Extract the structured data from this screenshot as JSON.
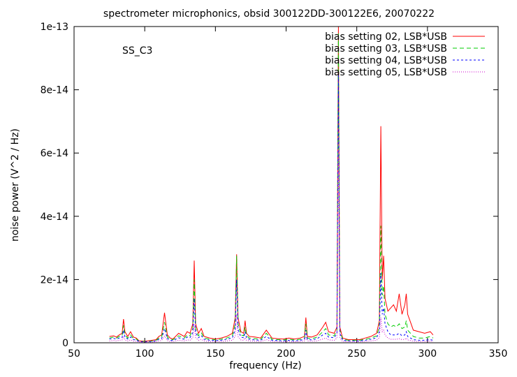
{
  "chart_data": {
    "type": "line",
    "title": "spectrometer microphonics, obsid 300122DD-300122E6, 20070222",
    "annotation": "SS_C3",
    "xlabel": "frequency (Hz)",
    "ylabel": "noise power (V^2 / Hz)",
    "xlim": [
      50,
      350
    ],
    "ylim": [
      0,
      1e-13
    ],
    "xticks": [
      {
        "value": 50,
        "label": "50"
      },
      {
        "value": 100,
        "label": "100"
      },
      {
        "value": 150,
        "label": "150"
      },
      {
        "value": 200,
        "label": "200"
      },
      {
        "value": 250,
        "label": "250"
      },
      {
        "value": 300,
        "label": "300"
      },
      {
        "value": 350,
        "label": "350"
      }
    ],
    "yticks": [
      {
        "value": 0,
        "label": "0"
      },
      {
        "value": 2e-14,
        "label": "2e-14"
      },
      {
        "value": 4e-14,
        "label": "4e-14"
      },
      {
        "value": 6e-14,
        "label": "6e-14"
      },
      {
        "value": 8e-14,
        "label": "8e-14"
      },
      {
        "value": 1e-13,
        "label": "1e-13"
      }
    ],
    "legend_position": "top-right",
    "x": [
      75,
      78,
      80,
      82,
      84,
      85,
      86,
      88,
      90,
      92,
      94,
      96,
      100,
      104,
      108,
      110,
      112,
      114,
      116,
      118,
      120,
      124,
      128,
      130,
      132,
      134,
      135,
      136,
      138,
      140,
      142,
      146,
      150,
      154,
      158,
      162,
      164,
      165,
      166,
      168,
      170,
      171,
      172,
      174,
      178,
      182,
      186,
      190,
      194,
      198,
      202,
      206,
      210,
      213,
      214,
      215,
      218,
      222,
      226,
      228,
      230,
      234,
      236,
      237,
      238,
      240,
      244,
      248,
      252,
      256,
      260,
      264,
      266,
      267,
      268,
      269,
      270,
      272,
      274,
      276,
      278,
      280,
      282,
      284,
      285,
      286,
      288,
      290,
      294,
      298,
      302,
      304
    ],
    "series": [
      {
        "name": "bias setting 02, LSB*USB",
        "color": "#ff0000",
        "dash": "",
        "values": [
          2e-15,
          2.2e-15,
          1.8e-15,
          2.5e-15,
          3e-15,
          7.5e-15,
          3.5e-15,
          2e-15,
          3.5e-15,
          1.8e-15,
          1.5e-15,
          6e-16,
          5e-16,
          7e-16,
          1e-15,
          2e-15,
          2.5e-15,
          9.5e-15,
          2.5e-15,
          1.5e-15,
          1.2e-15,
          3e-15,
          2e-15,
          3.5e-15,
          3e-15,
          6e-15,
          2.6e-14,
          6e-15,
          3e-15,
          4.5e-15,
          2e-15,
          1.5e-15,
          1.2e-15,
          1.5e-15,
          2e-15,
          3e-15,
          8e-15,
          2.8e-14,
          8e-15,
          3.5e-15,
          3e-15,
          7e-15,
          3e-15,
          2e-15,
          1.8e-15,
          1.5e-15,
          4e-15,
          1.5e-15,
          1.3e-15,
          1.2e-15,
          1.5e-15,
          1.2e-15,
          1.5e-15,
          2e-15,
          8e-15,
          2e-15,
          1.8e-15,
          2.5e-15,
          5e-15,
          6.5e-15,
          3.5e-15,
          3e-15,
          5e-15,
          1e-13,
          5e-15,
          1.5e-15,
          1e-15,
          1e-15,
          1e-15,
          1.5e-15,
          2e-15,
          3e-15,
          7e-15,
          6.85e-14,
          2e-14,
          2.75e-14,
          1.4e-14,
          1e-14,
          1.1e-14,
          1.2e-14,
          1e-14,
          1.55e-14,
          9e-15,
          1.2e-14,
          1.55e-14,
          9e-15,
          6.5e-15,
          4e-15,
          3.5e-15,
          3e-15,
          3.5e-15,
          2.5e-15
        ]
      },
      {
        "name": "bias setting 03, LSB*USB",
        "color": "#00cc00",
        "dash": "6,4",
        "values": [
          1.5e-15,
          1.8e-15,
          1.5e-15,
          2e-15,
          2.2e-15,
          5.5e-15,
          2.5e-15,
          1.5e-15,
          2.5e-15,
          1.3e-15,
          1.2e-15,
          5e-16,
          4e-16,
          5e-16,
          8e-16,
          1.5e-15,
          1.8e-15,
          6.5e-15,
          1.8e-15,
          1.1e-15,
          1e-15,
          2.2e-15,
          1.5e-15,
          2.5e-15,
          2.2e-15,
          4.5e-15,
          2e-14,
          4.5e-15,
          2.2e-15,
          3.2e-15,
          1.5e-15,
          1.1e-15,
          1e-15,
          1.1e-15,
          1.5e-15,
          2.2e-15,
          6e-15,
          2.75e-14,
          6e-15,
          2.5e-15,
          2.2e-15,
          5e-15,
          2.2e-15,
          1.5e-15,
          1.3e-15,
          1.1e-15,
          3e-15,
          1.1e-15,
          1e-15,
          9e-16,
          1.1e-15,
          9e-16,
          1.1e-15,
          1.5e-15,
          6e-15,
          1.5e-15,
          1.3e-15,
          1.8e-15,
          3.5e-15,
          4.5e-15,
          2.5e-15,
          2.2e-15,
          4e-15,
          9.8e-14,
          4e-15,
          1.1e-15,
          8e-16,
          8e-16,
          8e-16,
          1.1e-15,
          1.5e-15,
          2.2e-15,
          5e-15,
          3.7e-14,
          1.5e-14,
          1.8e-14,
          9e-15,
          6e-15,
          5e-15,
          5.5e-15,
          5e-15,
          6e-15,
          4.5e-15,
          5e-15,
          7e-15,
          4e-15,
          3e-15,
          2e-15,
          1.5e-15,
          1.5e-15,
          2e-15,
          1.5e-15
        ]
      },
      {
        "name": "bias setting 04, LSB*USB",
        "color": "#0000ff",
        "dash": "3,3",
        "values": [
          1.2e-15,
          1.4e-15,
          1.2e-15,
          1.5e-15,
          1.7e-15,
          4e-15,
          1.8e-15,
          1.2e-15,
          1.8e-15,
          1e-15,
          9e-16,
          4e-16,
          3e-16,
          4e-16,
          6e-16,
          1.1e-15,
          1.3e-15,
          4.5e-15,
          1.3e-15,
          8e-16,
          7e-16,
          1.6e-15,
          1.1e-15,
          1.8e-15,
          1.6e-15,
          3.2e-15,
          1.4e-14,
          3.2e-15,
          1.6e-15,
          2.3e-15,
          1.1e-15,
          8e-16,
          7e-16,
          8e-16,
          1.1e-15,
          1.6e-15,
          4.2e-15,
          2e-14,
          4.2e-15,
          1.8e-15,
          1.6e-15,
          3.5e-15,
          1.6e-15,
          1.1e-15,
          9e-16,
          8e-16,
          2e-15,
          8e-16,
          7e-16,
          6e-16,
          8e-16,
          6e-16,
          8e-16,
          1.1e-15,
          4e-15,
          1.1e-15,
          9e-16,
          1.3e-15,
          2.5e-15,
          3e-15,
          1.8e-15,
          1.6e-15,
          3e-15,
          8.5e-14,
          3e-15,
          8e-16,
          6e-16,
          6e-16,
          6e-16,
          8e-16,
          1.1e-15,
          1.6e-15,
          3.5e-15,
          2.2e-14,
          9e-15,
          1.1e-14,
          6e-15,
          3.5e-15,
          2.5e-15,
          2.5e-15,
          2.5e-15,
          3e-15,
          2.2e-15,
          2.5e-15,
          3.5e-15,
          2e-15,
          1.5e-15,
          1e-15,
          8e-16,
          8e-16,
          1e-15,
          8e-16
        ]
      },
      {
        "name": "bias setting 05, LSB*USB",
        "color": "#cc00cc",
        "dash": "1,2",
        "values": [
          6e-16,
          7e-16,
          6e-16,
          8e-16,
          9e-16,
          2e-15,
          9e-16,
          6e-16,
          9e-16,
          5e-16,
          5e-16,
          2e-16,
          2e-16,
          2e-16,
          3e-16,
          6e-16,
          7e-16,
          2.2e-15,
          7e-16,
          4e-16,
          4e-16,
          8e-16,
          6e-16,
          9e-16,
          8e-16,
          1.6e-15,
          6e-15,
          1.6e-15,
          8e-16,
          1.1e-15,
          6e-16,
          4e-16,
          4e-16,
          4e-16,
          6e-16,
          8e-16,
          2e-15,
          9e-15,
          2e-15,
          9e-16,
          8e-16,
          1.6e-15,
          8e-16,
          6e-16,
          5e-16,
          4e-16,
          1e-15,
          4e-16,
          4e-16,
          3e-16,
          4e-16,
          3e-16,
          4e-16,
          6e-16,
          2e-15,
          6e-16,
          5e-16,
          6e-16,
          1.2e-15,
          1.5e-15,
          9e-16,
          8e-16,
          1.5e-15,
          6e-14,
          1.5e-15,
          4e-16,
          3e-16,
          3e-16,
          3e-16,
          4e-16,
          6e-16,
          8e-16,
          1.6e-15,
          8e-15,
          3.5e-15,
          4e-15,
          2.5e-15,
          1.5e-15,
          1.1e-15,
          1.1e-15,
          1.1e-15,
          1.3e-15,
          1e-15,
          1.1e-15,
          1.5e-15,
          9e-16,
          7e-16,
          5e-16,
          4e-16,
          4e-16,
          5e-16,
          4e-16
        ]
      }
    ]
  }
}
